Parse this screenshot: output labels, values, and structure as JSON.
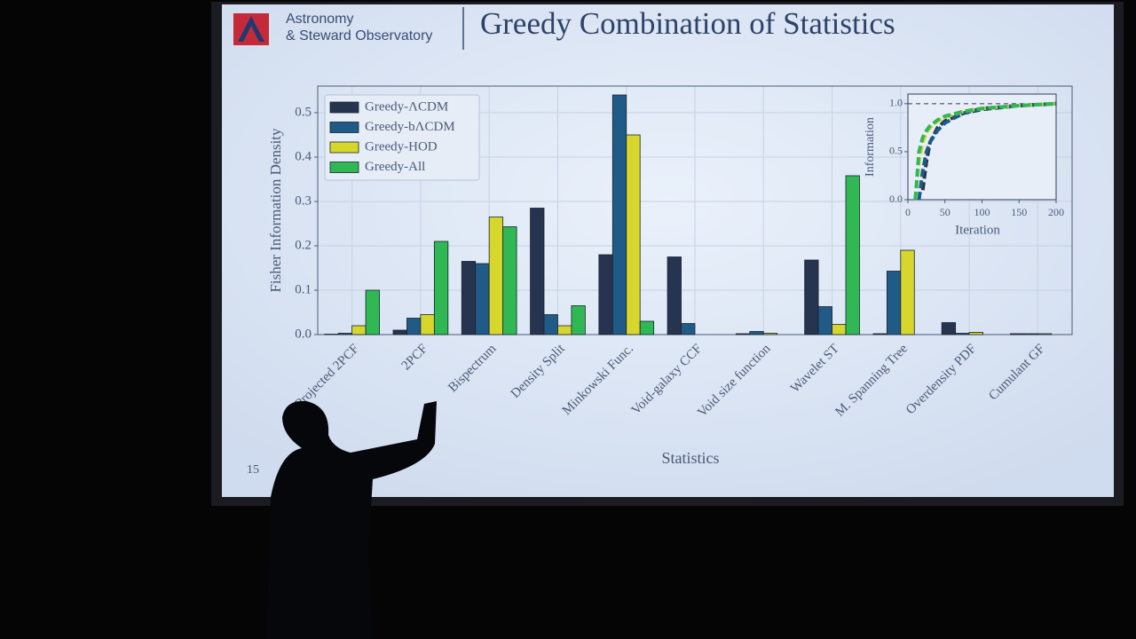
{
  "slide": {
    "org": [
      "Astronomy",
      "& Steward Observatory"
    ],
    "title": "Greedy Combination of Statistics",
    "page_number": "15"
  },
  "chart_data": [
    {
      "type": "bar",
      "xlabel": "Statistics",
      "ylabel": "Fisher Information Density",
      "categories": [
        "Projected 2PCF",
        "2PCF",
        "Bispectrum",
        "Density Split",
        "Minkowski Func.",
        "Void-galaxy CCF",
        "Void size function",
        "Wavelet ST",
        "M. Spanning Tree",
        "Overdensity PDF",
        "Cumulant GF"
      ],
      "series": [
        {
          "name": "Greedy-ΛCDM",
          "color": "#27344f",
          "values": [
            0.001,
            0.01,
            0.165,
            0.285,
            0.18,
            0.175,
            0.002,
            0.168,
            0.002,
            0.027,
            0.002
          ]
        },
        {
          "name": "Greedy-bΛCDM",
          "color": "#1f5b86",
          "values": [
            0.003,
            0.037,
            0.16,
            0.045,
            0.54,
            0.025,
            0.007,
            0.063,
            0.143,
            0.003,
            0.002
          ]
        },
        {
          "name": "Greedy-HOD",
          "color": "#d6d62c",
          "values": [
            0.02,
            0.045,
            0.265,
            0.02,
            0.45,
            0,
            0.003,
            0.023,
            0.19,
            0.005,
            0.002
          ]
        },
        {
          "name": "Greedy-All",
          "color": "#2fb853",
          "values": [
            0.1,
            0.21,
            0.243,
            0.065,
            0.03,
            0,
            0,
            0.358,
            0,
            0,
            0
          ]
        }
      ],
      "ylim": [
        0,
        0.56
      ],
      "yticks": [
        {
          "value": 0,
          "label": "0.0"
        },
        0.1,
        0.2,
        0.3,
        0.4,
        0.5
      ],
      "grid": true,
      "legend": "upper-left"
    },
    {
      "type": "line",
      "xlabel": "Iteration",
      "ylabel": "Information",
      "x": [
        10,
        15,
        20,
        25,
        30,
        40,
        50,
        75,
        100,
        150,
        200
      ],
      "series": [
        {
          "name": "Greedy-ΛCDM",
          "color": "#27344f",
          "values": [
            null,
            null,
            0.1,
            0.4,
            0.6,
            0.75,
            0.82,
            0.9,
            0.94,
            0.98,
            1.0
          ]
        },
        {
          "name": "Greedy-bΛCDM",
          "color": "#1f5b86",
          "values": [
            null,
            0.0,
            0.3,
            0.5,
            0.6,
            0.72,
            0.8,
            0.9,
            0.95,
            0.98,
            1.0
          ]
        },
        {
          "name": "Greedy-HOD",
          "color": "#d6d62c",
          "values": [
            0.0,
            0.4,
            0.6,
            0.7,
            0.75,
            0.82,
            0.86,
            0.92,
            0.95,
            0.98,
            1.0
          ]
        },
        {
          "name": "Greedy-All",
          "color": "#2fb853",
          "values": [
            0.0,
            0.5,
            0.65,
            0.72,
            0.77,
            0.83,
            0.87,
            0.92,
            0.95,
            0.98,
            1.0
          ]
        }
      ],
      "xlim": [
        0,
        200
      ],
      "xticks": [
        0,
        50,
        100,
        150,
        200
      ],
      "ylim": [
        0,
        1.1
      ],
      "yticks": [
        {
          "value": 0,
          "label": "0.0"
        },
        0.5,
        {
          "value": 1,
          "label": "1.0"
        }
      ]
    }
  ]
}
